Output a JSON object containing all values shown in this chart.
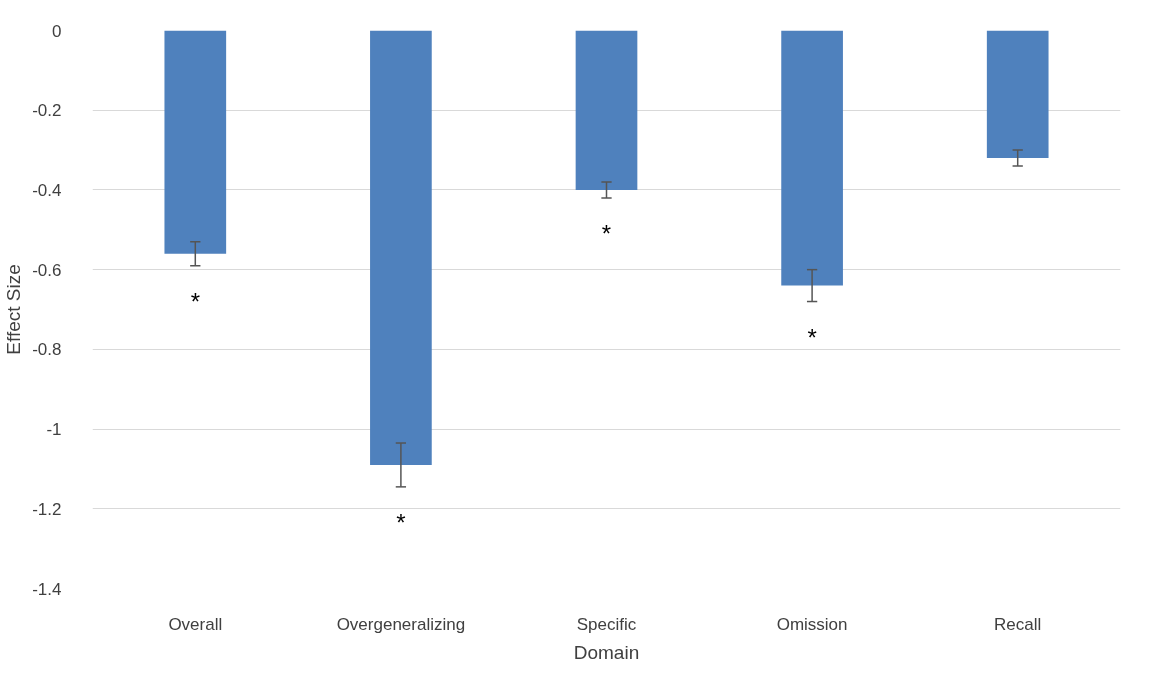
{
  "chart_data": {
    "type": "bar",
    "xlabel": "Domain",
    "ylabel": "Effect Size",
    "categories": [
      "Overall",
      "Overgeneralizing",
      "Specific",
      "Omission",
      "Recall"
    ],
    "values": [
      -0.56,
      -1.09,
      -0.4,
      -0.64,
      -0.32
    ],
    "errors": [
      0.03,
      0.055,
      0.02,
      0.04,
      0.02
    ],
    "color": "#4f81bd",
    "ylim": [
      -1.4,
      0
    ],
    "yticks": [
      -1.4,
      -1.2,
      -1,
      -0.8,
      -0.6,
      -0.4,
      -0.2,
      0
    ],
    "grid": "y",
    "annotations": [
      "*",
      "*",
      "*",
      "*"
    ]
  }
}
